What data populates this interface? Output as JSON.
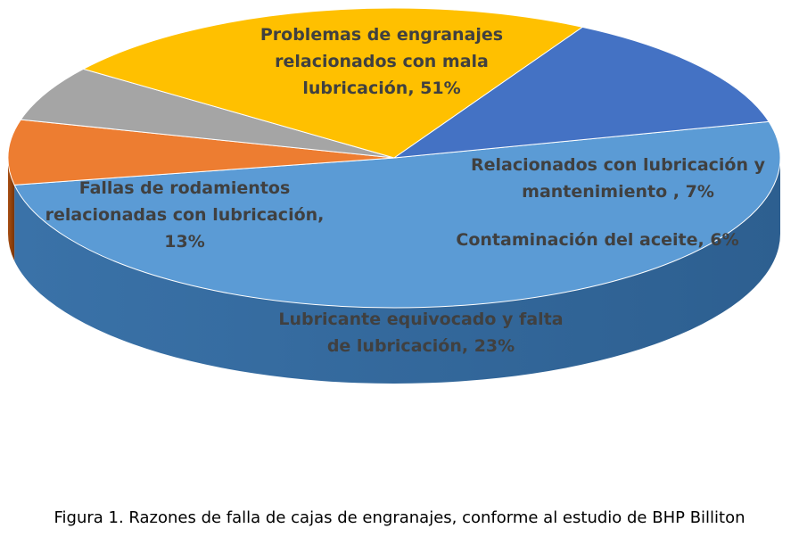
{
  "chart_data": {
    "type": "pie",
    "style": "3d",
    "slices": [
      {
        "label": "Problemas de engranajes relacionados con mala lubricación, 51%",
        "value": 51,
        "color": "#5b9bd5"
      },
      {
        "label": "Relacionados con lubricación y mantenimiento , 7%",
        "value": 7,
        "color": "#ed7d31"
      },
      {
        "label": "Contaminación del aceite, 6%",
        "value": 6,
        "color": "#a5a5a5"
      },
      {
        "label": "Lubricante equivocado y falta de lubricación, 23%",
        "value": 23,
        "color": "#ffc000"
      },
      {
        "label": "Fallas de rodamientos relacionadas con lubricación, 13%",
        "value": 13,
        "color": "#4472c4"
      }
    ],
    "label_lines": [
      [
        "Problemas de engranajes",
        "relacionados con mala",
        "lubricación, 51%"
      ],
      [
        "Relacionados con lubricación y",
        "mantenimiento , 7%"
      ],
      [
        "Contaminación del aceite, 6%"
      ],
      [
        "Lubricante equivocado y falta",
        "de lubricación, 23%"
      ],
      [
        "Fallas de rodamientos",
        "relacionadas con lubricación,",
        "13%"
      ]
    ]
  },
  "caption": "Figura 1. Razones de falla de cajas de engranajes, conforme al estudio de BHP Billiton"
}
